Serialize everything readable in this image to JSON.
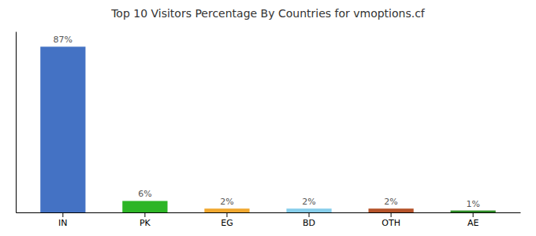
{
  "chart_data": {
    "type": "bar",
    "title": "Top 10 Visitors Percentage By Countries for vmoptions.cf",
    "categories": [
      "IN",
      "PK",
      "EG",
      "BD",
      "OTH",
      "AE"
    ],
    "values": [
      87,
      6,
      2,
      2,
      2,
      1
    ],
    "value_labels": [
      "87%",
      "6%",
      "2%",
      "2%",
      "2%",
      "1%"
    ],
    "colors": [
      "#4472c4",
      "#2db526",
      "#f0a830",
      "#87ceeb",
      "#b5532a",
      "#2d8b25"
    ],
    "ylim": [
      0,
      95
    ],
    "data_labels": true,
    "tick_labels": "x",
    "grid": false
  }
}
